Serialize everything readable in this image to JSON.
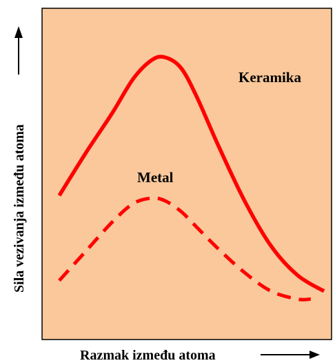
{
  "chart_data": {
    "type": "line",
    "title": "",
    "xlabel": "Razmak između atoma",
    "ylabel": "Sila vezivanja između atoma",
    "grid": false,
    "legend": "none",
    "xlim": [
      0,
      100
    ],
    "ylim": [
      0,
      100
    ],
    "background_color": "#fac89b",
    "series": [
      {
        "name": "Keramika",
        "color": "#ff0000",
        "style": "solid",
        "x": [
          0,
          10,
          20,
          28,
          35,
          40,
          46,
          52,
          60,
          70,
          80,
          90,
          100
        ],
        "y": [
          42,
          58,
          73,
          86,
          93,
          94,
          90,
          79,
          61,
          40,
          23,
          12,
          6
        ]
      },
      {
        "name": "Metal",
        "color": "#ff0000",
        "style": "dashed",
        "x": [
          0,
          10,
          20,
          28,
          35,
          40,
          46,
          52,
          60,
          70,
          80,
          90,
          95
        ],
        "y": [
          10,
          21,
          32,
          39,
          41,
          40,
          36,
          30,
          22,
          13,
          6,
          3,
          3
        ]
      }
    ]
  }
}
